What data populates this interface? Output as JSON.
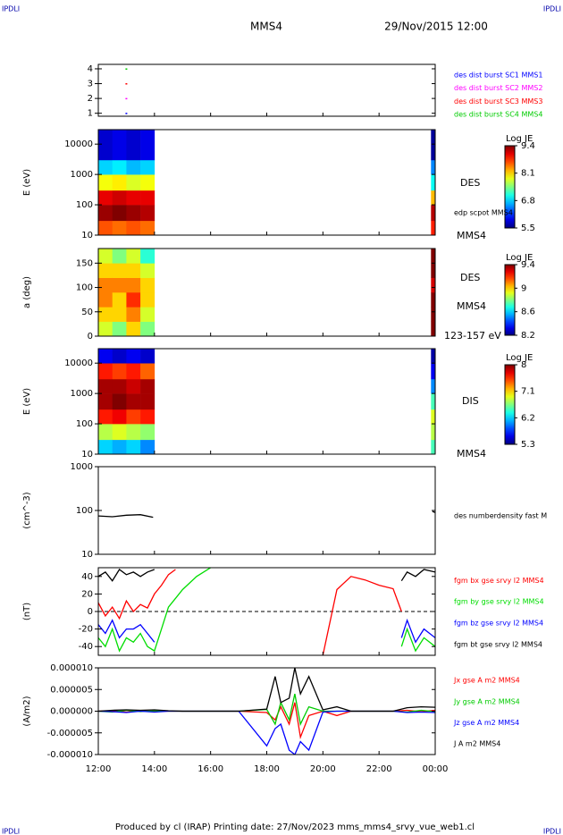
{
  "header": {
    "title": "MMS4",
    "date": "29/Nov/2015 12:00",
    "corner_marks": [
      "IPDLI",
      "IPDLI",
      "IPDLI",
      "IPDLI"
    ]
  },
  "footer": {
    "text": "Produced by cl (IRAP)   Printing date: 27/Nov/2023   mms_mms4_srvy_vue_web1.cl"
  },
  "chart_data": [
    {
      "type": "scatter",
      "ylim": [
        0.8,
        4.3
      ],
      "yticks": [
        1,
        2,
        3,
        4
      ],
      "series": [
        {
          "name": "des dist burst SC1 MMS1",
          "color": "#0000ff",
          "x": [
            13.0
          ],
          "values": [
            1
          ]
        },
        {
          "name": "des dist burst SC2 MMS2",
          "color": "#ff00ff",
          "x": [
            13.0
          ],
          "values": [
            2
          ]
        },
        {
          "name": "des dist burst SC3 MMS3",
          "color": "#ff0000",
          "x": [
            13.0
          ],
          "values": [
            3
          ]
        },
        {
          "name": "des dist burst SC4 MMS4",
          "color": "#00cc00",
          "x": [
            13.0
          ],
          "values": [
            4
          ]
        }
      ]
    },
    {
      "type": "heatmap",
      "ylabel": "E (eV)",
      "ylog": true,
      "ylim": [
        10,
        30000
      ],
      "yticks": [
        10,
        100,
        1000,
        10000
      ],
      "x_edges": [
        12,
        12.5,
        13,
        13.5,
        14,
        23.85,
        24
      ],
      "y_edges": [
        10,
        30,
        100,
        300,
        1000,
        3000,
        30000
      ],
      "z": [
        [
          8.6,
          9.3,
          9.0,
          7.9,
          6.8,
          5.8
        ],
        [
          8.5,
          9.4,
          9.1,
          8.0,
          6.9,
          5.9
        ],
        [
          8.6,
          9.3,
          9.0,
          7.8,
          6.7,
          5.8
        ],
        [
          8.5,
          9.2,
          9.0,
          7.9,
          6.8,
          5.9
        ],
        null,
        [
          8.8,
          9.2,
          8.2,
          7.0,
          6.5,
          5.6
        ]
      ],
      "zlabel": "Log JE",
      "zticks": [
        5.5,
        6.8,
        8.1,
        9.4
      ],
      "annotations": [
        "DES",
        "edp scpot MMS4",
        "MMS4"
      ]
    },
    {
      "type": "heatmap",
      "ylabel": "a (deg)",
      "ylim": [
        0,
        180
      ],
      "yticks": [
        0,
        50,
        100,
        150
      ],
      "x_edges": [
        12,
        12.5,
        13,
        13.5,
        14,
        23.85,
        24
      ],
      "y_edges": [
        0,
        30,
        60,
        90,
        120,
        150,
        180
      ],
      "z": [
        [
          8.9,
          9.0,
          9.1,
          9.1,
          9.0,
          8.9
        ],
        [
          8.8,
          9.0,
          9.0,
          9.1,
          9.0,
          8.8
        ],
        [
          9.0,
          9.1,
          9.2,
          9.1,
          9.0,
          8.9
        ],
        [
          8.8,
          8.9,
          9.0,
          9.0,
          8.9,
          8.7
        ],
        null,
        [
          9.4,
          9.4,
          9.4,
          9.3,
          9.4,
          9.4
        ]
      ],
      "zlabel": "Log JE",
      "zticks": [
        8.2,
        8.6,
        9.0,
        9.4
      ],
      "annotations": [
        "DES",
        "MMS4",
        "123-157 eV"
      ]
    },
    {
      "type": "heatmap",
      "ylabel": "E (eV)",
      "ylog": true,
      "ylim": [
        10,
        30000
      ],
      "yticks": [
        10,
        100,
        1000,
        10000
      ],
      "x_edges": [
        12,
        12.5,
        13,
        13.5,
        14,
        23.85,
        24
      ],
      "y_edges": [
        10,
        30,
        100,
        300,
        1000,
        3000,
        10000,
        30000
      ],
      "z": [
        [
          6.2,
          6.8,
          7.6,
          7.9,
          7.9,
          7.6,
          5.6
        ],
        [
          6.1,
          6.9,
          7.7,
          8.0,
          7.9,
          7.5,
          5.5
        ],
        [
          6.2,
          6.8,
          7.5,
          7.9,
          7.8,
          7.6,
          5.6
        ],
        [
          6.0,
          6.7,
          7.6,
          7.9,
          7.9,
          7.4,
          5.5
        ],
        null,
        [
          6.5,
          6.8,
          6.9,
          6.5,
          6.0,
          5.6,
          5.4
        ]
      ],
      "zlabel": "Log JE",
      "zticks": [
        5.3,
        6.2,
        7.1,
        8.0
      ],
      "annotations": [
        "DIS",
        "MMS4"
      ]
    },
    {
      "type": "line",
      "ylabel": "(cm^-3)",
      "ylog": true,
      "ylim": [
        10,
        1000
      ],
      "yticks": [
        10,
        100,
        1000
      ],
      "x": [
        12,
        12.5,
        13,
        13.5,
        13.95,
        14.05,
        23.9,
        24
      ],
      "series": [
        {
          "name": "des numberdensity fast M",
          "color": "#000000",
          "values": [
            75,
            72,
            78,
            80,
            70,
            null,
            95,
            90
          ]
        }
      ]
    },
    {
      "type": "line",
      "ylabel": "(nT)",
      "ylim": [
        -50,
        50
      ],
      "yticks": [
        40,
        20,
        0,
        -20,
        -40
      ],
      "reference_line": 0,
      "x": [
        12,
        12.25,
        12.5,
        12.75,
        13,
        13.25,
        13.5,
        13.75,
        14,
        14.25,
        14.5,
        14.75,
        15,
        15.5,
        16,
        17,
        17.8,
        18.3,
        18.6,
        19,
        19.3,
        19.6,
        20,
        20.5,
        21,
        21.5,
        22,
        22.5,
        22.8,
        23,
        23.3,
        23.6,
        24
      ],
      "series": [
        {
          "name": "fgm bx gse srvy l2 MMS4",
          "color": "#ff0000",
          "values": [
            10,
            -5,
            5,
            -8,
            12,
            0,
            8,
            4,
            20,
            30,
            42,
            48,
            null,
            null,
            null,
            null,
            null,
            null,
            null,
            null,
            null,
            null,
            -50,
            25,
            40,
            36,
            30,
            26,
            0,
            null,
            null,
            null,
            null
          ]
        },
        {
          "name": "fgm by gse srvy l2 MMS4",
          "color": "#00dd00",
          "values": [
            -30,
            -40,
            -20,
            -45,
            -30,
            -35,
            -25,
            -40,
            -45,
            -20,
            5,
            15,
            25,
            40,
            50,
            null,
            null,
            null,
            null,
            null,
            null,
            null,
            null,
            null,
            null,
            null,
            null,
            null,
            -40,
            -20,
            -45,
            -30,
            -40
          ]
        },
        {
          "name": "fgm bz gse srvy l2 MMS4",
          "color": "#0000ff",
          "values": [
            -15,
            -25,
            -10,
            -30,
            -20,
            -20,
            -15,
            -25,
            -35,
            null,
            null,
            null,
            null,
            null,
            null,
            null,
            null,
            null,
            null,
            null,
            null,
            null,
            null,
            null,
            null,
            null,
            null,
            null,
            -30,
            -10,
            -35,
            -20,
            -30
          ]
        },
        {
          "name": "fgm bt gse srvy l2 MMS4",
          "color": "#000000",
          "values": [
            40,
            45,
            35,
            48,
            42,
            45,
            40,
            45,
            48,
            null,
            null,
            null,
            null,
            null,
            null,
            null,
            null,
            null,
            null,
            null,
            null,
            null,
            null,
            null,
            null,
            null,
            null,
            null,
            35,
            45,
            40,
            48,
            45
          ]
        }
      ]
    },
    {
      "type": "line",
      "ylabel": "(A/m2)",
      "ylim": [
        -1e-05,
        1e-05
      ],
      "yticks": [
        {
          "value": 1e-05,
          "label": "0.000010"
        },
        {
          "value": 5e-06,
          "label": "0.000005"
        },
        {
          "value": 0,
          "label": "0.000000"
        },
        {
          "value": -5e-06,
          "label": "-0.000005"
        },
        {
          "value": -1e-05,
          "label": "-0.000010"
        }
      ],
      "xlim": [
        12,
        24
      ],
      "xticks": [
        {
          "value": 12,
          "label": "12:00"
        },
        {
          "value": 14,
          "label": "14:00"
        },
        {
          "value": 16,
          "label": "16:00"
        },
        {
          "value": 18,
          "label": "18:00"
        },
        {
          "value": 20,
          "label": "20:00"
        },
        {
          "value": 22,
          "label": "22:00"
        },
        {
          "value": 24,
          "label": "00:00"
        }
      ],
      "x": [
        12,
        12.5,
        13,
        13.5,
        14,
        14.5,
        15,
        16,
        17,
        18,
        18.3,
        18.5,
        18.8,
        19,
        19.2,
        19.5,
        20,
        20.5,
        21,
        22,
        22.5,
        23,
        23.5,
        24
      ],
      "series": [
        {
          "name": "Jx gse A m2 MMS4",
          "color": "#ff0000",
          "values": [
            0,
            1e-07,
            -2e-07,
            1e-07,
            0,
            0,
            0,
            0,
            0,
            -3e-07,
            -2e-06,
            1e-06,
            -3e-06,
            2e-06,
            -6e-06,
            -1e-06,
            0,
            -1e-06,
            0,
            0,
            0,
            2e-07,
            -1e-07,
            2e-07
          ]
        },
        {
          "name": "Jy gse A m2 MMS4",
          "color": "#00cc00",
          "values": [
            0,
            -2e-07,
            2e-07,
            -1e-07,
            1e-07,
            0,
            0,
            0,
            0,
            4e-07,
            -3e-06,
            2e-06,
            -2e-06,
            4e-06,
            -3e-06,
            1e-06,
            0,
            0,
            0,
            0,
            0,
            -2e-07,
            2e-07,
            -1e-07
          ]
        },
        {
          "name": "Jz gse A m2 MMS4",
          "color": "#0000ff",
          "values": [
            0,
            -1e-07,
            -3e-07,
            0,
            -2e-07,
            0,
            0,
            0,
            0,
            -8e-06,
            -4e-06,
            -3e-06,
            -9e-06,
            -1e-05,
            -7e-06,
            -9e-06,
            -2e-07,
            0,
            0,
            0,
            0,
            -3e-07,
            -2e-07,
            -3e-07
          ]
        },
        {
          "name": "J A m2 MMS4",
          "color": "#000000",
          "values": [
            0,
            2e-07,
            3e-07,
            2e-07,
            3e-07,
            1e-07,
            0,
            0,
            0,
            5e-07,
            8e-06,
            2e-06,
            3e-06,
            1e-05,
            4e-06,
            8e-06,
            3e-07,
            1e-06,
            0,
            0,
            0,
            8e-07,
            1e-06,
            9e-07
          ]
        }
      ]
    }
  ]
}
